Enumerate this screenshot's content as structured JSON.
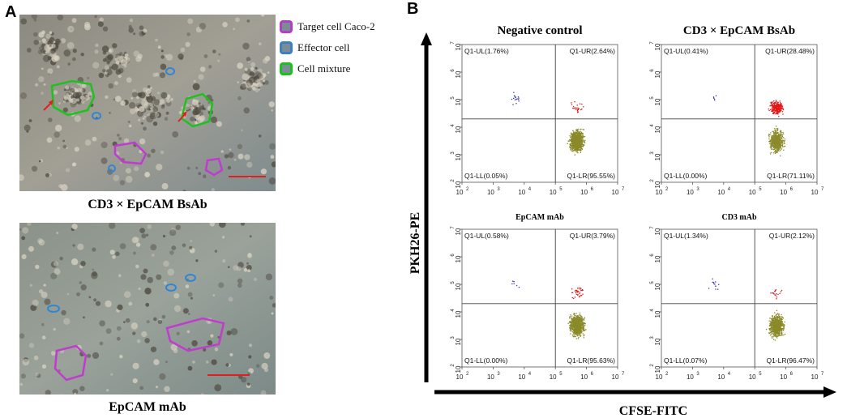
{
  "panels": {
    "a_label": "A",
    "b_label": "B"
  },
  "legend": {
    "items": [
      {
        "label": "Target cell Caco-2",
        "color": "#b43cc8",
        "icon": "purple-outline-icon"
      },
      {
        "label": "Effector cell",
        "color": "#3a7fc8",
        "icon": "blue-outline-icon"
      },
      {
        "label": "Cell mixture",
        "color": "#19c21a",
        "icon": "green-outline-icon"
      }
    ]
  },
  "micrographs": [
    {
      "caption": "CD3 × EpCAM BsAb"
    },
    {
      "caption": "EpCAM mAb"
    }
  ],
  "colors": {
    "target": "#c03ccf",
    "effector": "#2f86d6",
    "mixture": "#1ec21e",
    "arrow": "#e02020",
    "scalebar": "#e02020",
    "dot_ul": "#3b3bb0",
    "dot_ur": "#e01818",
    "dot_lr": "#8a8a2a"
  },
  "axes": {
    "y_title": "PKH26-PE",
    "x_title": "CFSE-FITC"
  },
  "chart_data": [
    {
      "type": "scatter",
      "title": "Negative control",
      "x_ticks": [
        "10",
        "10",
        "10",
        "10",
        "10",
        "10"
      ],
      "x_exponents": [
        "2",
        "3",
        "4",
        "5",
        "6",
        "7"
      ],
      "y_ticks": [
        "10",
        "10",
        "10",
        "10",
        "10",
        "10"
      ],
      "y_exponents": [
        "2",
        "3",
        "4",
        "5",
        "6",
        "7"
      ],
      "xlim_log10": [
        2,
        7
      ],
      "ylim_log10": [
        2,
        7
      ],
      "gate_log10": {
        "x": 5.0,
        "y": 4.3
      },
      "quadrants": {
        "UL": "Q1-UL(1.76%)",
        "UR": "Q1-UR(2.64%)",
        "LL": "Q1-LL(0.05%)",
        "LR": "Q1-LR(95.55%)"
      },
      "percent": {
        "UL": 1.76,
        "UR": 2.64,
        "LL": 0.05,
        "LR": 95.55
      }
    },
    {
      "type": "scatter",
      "title": "CD3 × EpCAM BsAb",
      "x_ticks": [
        "10",
        "10",
        "10",
        "10",
        "10",
        "10"
      ],
      "x_exponents": [
        "2",
        "3",
        "4",
        "5",
        "6",
        "7"
      ],
      "y_ticks": [
        "10",
        "10",
        "10",
        "10",
        "10",
        "10"
      ],
      "y_exponents": [
        "2",
        "3",
        "4",
        "5",
        "6",
        "7"
      ],
      "xlim_log10": [
        2,
        7
      ],
      "ylim_log10": [
        2,
        7
      ],
      "gate_log10": {
        "x": 5.0,
        "y": 4.3
      },
      "quadrants": {
        "UL": "Q1-UL(0.41%)",
        "UR": "Q1-UR(28.48%)",
        "LL": "Q1-LL(0.00%)",
        "LR": "Q1-LR(71.11%)"
      },
      "percent": {
        "UL": 0.41,
        "UR": 28.48,
        "LL": 0.0,
        "LR": 71.11
      }
    },
    {
      "type": "scatter",
      "title": "EpCAM mAb",
      "x_ticks": [
        "10",
        "10",
        "10",
        "10",
        "10",
        "10"
      ],
      "x_exponents": [
        "2",
        "3",
        "4",
        "5",
        "6",
        "7"
      ],
      "y_ticks": [
        "10",
        "10",
        "10",
        "10",
        "10",
        "10"
      ],
      "y_exponents": [
        "2",
        "3",
        "4",
        "5",
        "6",
        "7"
      ],
      "xlim_log10": [
        2,
        7
      ],
      "ylim_log10": [
        2,
        7
      ],
      "gate_log10": {
        "x": 5.0,
        "y": 4.3
      },
      "quadrants": {
        "UL": "Q1-UL(0.58%)",
        "UR": "Q1-UR(3.79%)",
        "LL": "Q1-LL(0.00%)",
        "LR": "Q1-LR(95.63%)"
      },
      "percent": {
        "UL": 0.58,
        "UR": 3.79,
        "LL": 0.0,
        "LR": 95.63
      }
    },
    {
      "type": "scatter",
      "title": "CD3 mAb",
      "x_ticks": [
        "10",
        "10",
        "10",
        "10",
        "10",
        "10"
      ],
      "x_exponents": [
        "2",
        "3",
        "4",
        "5",
        "6",
        "7"
      ],
      "y_ticks": [
        "10",
        "10",
        "10",
        "10",
        "10",
        "10"
      ],
      "y_exponents": [
        "2",
        "3",
        "4",
        "5",
        "6",
        "7"
      ],
      "xlim_log10": [
        2,
        7
      ],
      "ylim_log10": [
        2,
        7
      ],
      "gate_log10": {
        "x": 5.0,
        "y": 4.3
      },
      "quadrants": {
        "UL": "Q1-UL(1.34%)",
        "UR": "Q1-UR(2.12%)",
        "LL": "Q1-LL(0.07%)",
        "LR": "Q1-LR(96.47%)"
      },
      "percent": {
        "UL": 1.34,
        "UR": 2.12,
        "LL": 0.07,
        "LR": 96.47
      }
    }
  ]
}
